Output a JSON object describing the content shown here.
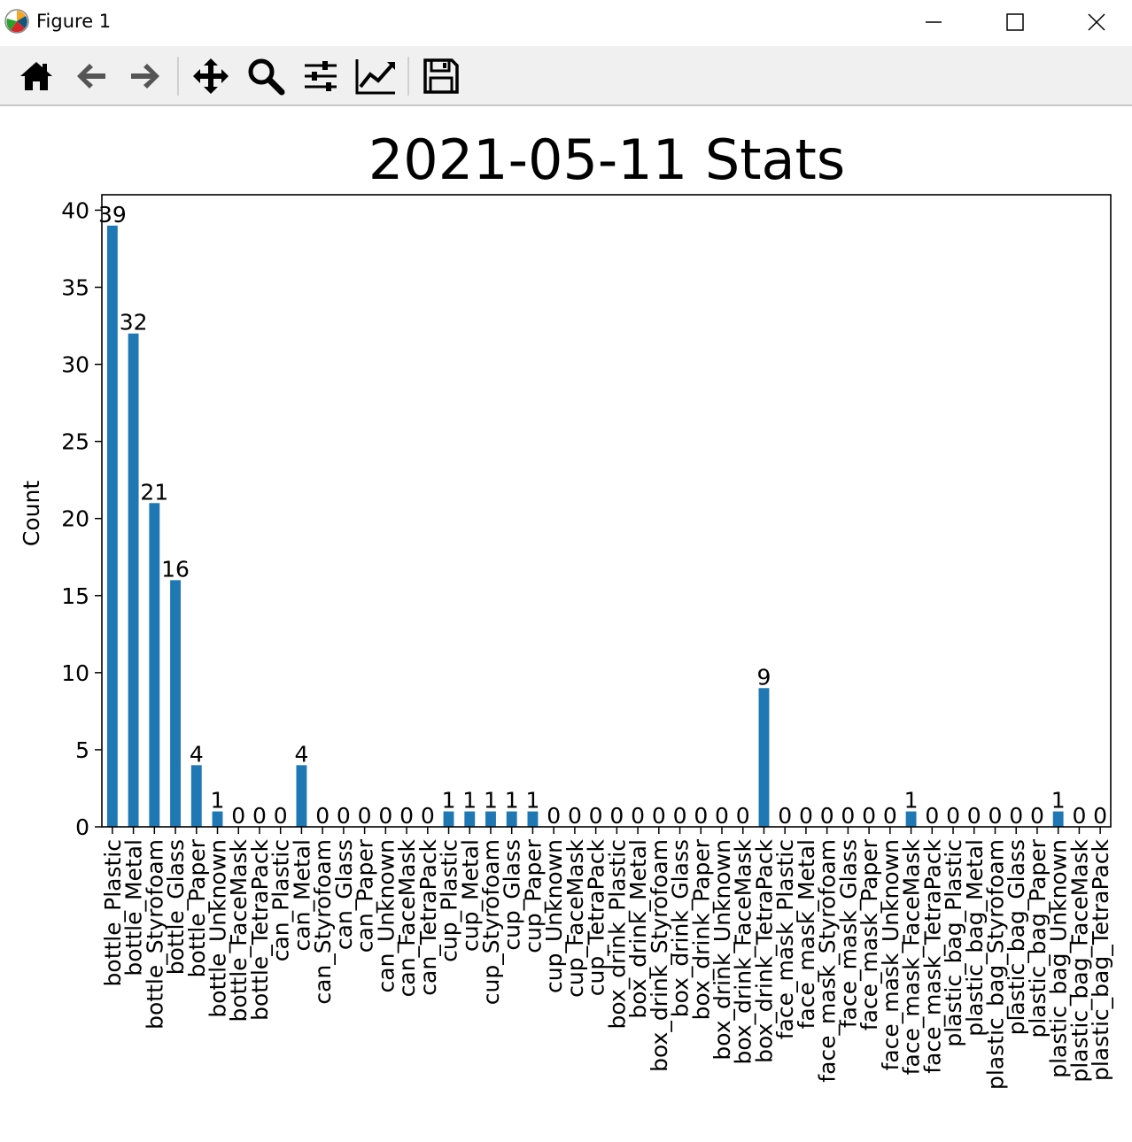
{
  "window": {
    "title": "Figure 1",
    "controls": [
      "minimize",
      "maximize",
      "close"
    ]
  },
  "toolbar": {
    "tools": [
      {
        "name": "home-icon",
        "tooltip": "Reset original view"
      },
      {
        "name": "back-icon",
        "tooltip": "Back to previous view"
      },
      {
        "name": "forward-icon",
        "tooltip": "Forward to next view"
      },
      {
        "name": "pan-icon",
        "tooltip": "Pan axes"
      },
      {
        "name": "zoom-icon",
        "tooltip": "Zoom to rectangle"
      },
      {
        "name": "subplots-icon",
        "tooltip": "Configure subplots"
      },
      {
        "name": "edit-axis-icon",
        "tooltip": "Edit axis"
      },
      {
        "name": "save-icon",
        "tooltip": "Save the figure"
      }
    ]
  },
  "chart_data": {
    "type": "bar",
    "title": "2021-05-11 Stats",
    "xlabel": "",
    "ylabel": "Count",
    "ylim": [
      0,
      41
    ],
    "yticks": [
      0,
      5,
      10,
      15,
      20,
      25,
      30,
      35,
      40
    ],
    "bar_color": "#1f77b4",
    "grid": false,
    "legend": "none",
    "categories": [
      "bottle_Plastic",
      "bottle_Metal",
      "bottle_Styrofoam",
      "bottle_Glass",
      "bottle_Paper",
      "bottle_Unknown",
      "bottle_FaceMask",
      "bottle_TetraPack",
      "can_Plastic",
      "can_Metal",
      "can_Styrofoam",
      "can_Glass",
      "can_Paper",
      "can_Unknown",
      "can_FaceMask",
      "can_TetraPack",
      "cup_Plastic",
      "cup_Metal",
      "cup_Styrofoam",
      "cup_Glass",
      "cup_Paper",
      "cup_Unknown",
      "cup_FaceMask",
      "cup_TetraPack",
      "box_drink_Plastic",
      "box_drink_Metal",
      "box_drink_Styrofoam",
      "box_drink_Glass",
      "box_drink_Paper",
      "box_drink_Unknown",
      "box_drink_FaceMask",
      "box_drink_TetraPack",
      "face_mask_Plastic",
      "face_mask_Metal",
      "face_mask_Styrofoam",
      "face_mask_Glass",
      "face_mask_Paper",
      "face_mask_Unknown",
      "face_mask_FaceMask",
      "face_mask_TetraPack",
      "plastic_bag_Plastic",
      "plastic_bag_Metal",
      "plastic_bag_Styrofoam",
      "plastic_bag_Glass",
      "plastic_bag_Paper",
      "plastic_bag_Unknown",
      "plastic_bag_FaceMask",
      "plastic_bag_TetraPack"
    ],
    "values": [
      39,
      32,
      21,
      16,
      4,
      1,
      0,
      0,
      0,
      4,
      0,
      0,
      0,
      0,
      0,
      0,
      1,
      1,
      1,
      1,
      1,
      0,
      0,
      0,
      0,
      0,
      0,
      0,
      0,
      0,
      0,
      9,
      0,
      0,
      0,
      0,
      0,
      0,
      1,
      0,
      0,
      0,
      0,
      0,
      0,
      1,
      0,
      0
    ]
  }
}
